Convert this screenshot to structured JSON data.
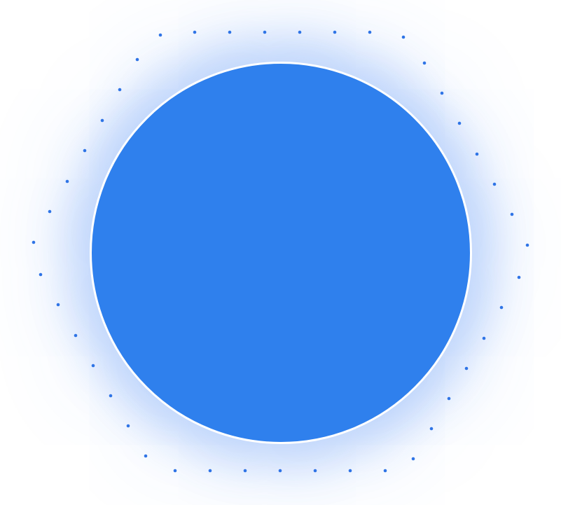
{
  "colors": {
    "circle_fill": "#2F80ED",
    "circle_border": "#FFFFFF",
    "dot": "#2F74E6",
    "background": "#FFFFFF"
  }
}
